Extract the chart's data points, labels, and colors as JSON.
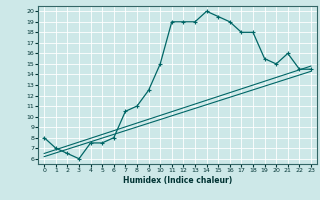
{
  "xlabel": "Humidex (Indice chaleur)",
  "bg_color": "#cde8e8",
  "grid_color": "#ffffff",
  "line_color": "#006666",
  "xlim": [
    -0.5,
    23.5
  ],
  "ylim": [
    5.5,
    20.5
  ],
  "xticks": [
    0,
    1,
    2,
    3,
    4,
    5,
    6,
    7,
    8,
    9,
    10,
    11,
    12,
    13,
    14,
    15,
    16,
    17,
    18,
    19,
    20,
    21,
    22,
    23
  ],
  "yticks": [
    6,
    7,
    8,
    9,
    10,
    11,
    12,
    13,
    14,
    15,
    16,
    17,
    18,
    19,
    20
  ],
  "curve1_x": [
    0,
    1,
    2,
    3,
    4,
    5,
    6,
    7,
    8,
    9,
    10,
    11,
    12,
    13,
    14,
    15,
    16,
    17,
    18,
    19,
    20,
    21,
    22,
    23
  ],
  "curve1_y": [
    8,
    7,
    6.5,
    6,
    7.5,
    7.5,
    8,
    10.5,
    11.0,
    12.5,
    15.0,
    19.0,
    19.0,
    19.0,
    20.0,
    19.5,
    19.0,
    18.0,
    18.0,
    15.5,
    15.0,
    16.0,
    14.5,
    14.5
  ],
  "line2_x": [
    0,
    23
  ],
  "line2_y": [
    6.5,
    14.8
  ],
  "line3_x": [
    0,
    23
  ],
  "line3_y": [
    6.2,
    14.3
  ]
}
